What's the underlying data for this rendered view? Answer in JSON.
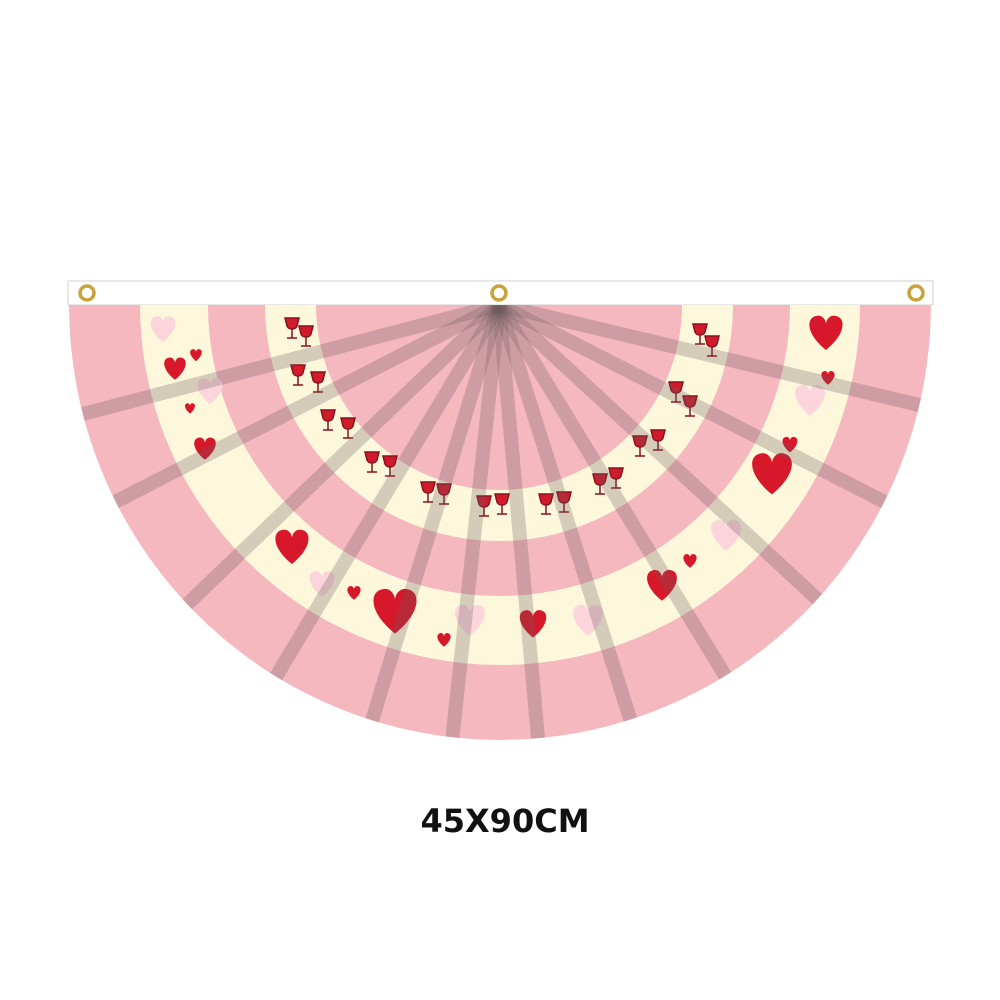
{
  "caption": "45X90CM"
}
